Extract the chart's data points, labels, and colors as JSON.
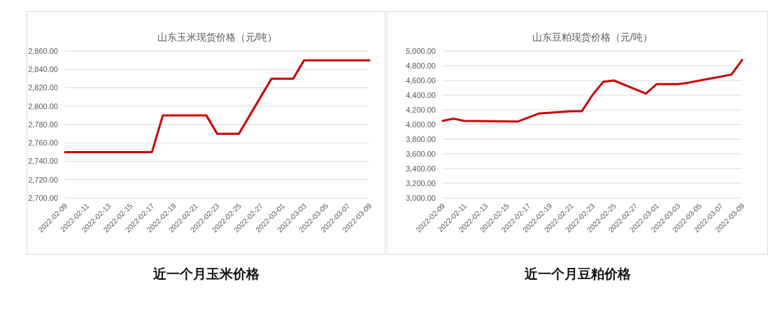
{
  "chart_data": [
    {
      "type": "line",
      "title": "山东玉米现货价格（元/吨）",
      "annotations": [
        "近一个月玉米价格"
      ],
      "x": [
        "2022-02-09",
        "2022-02-17",
        "2022-02-18",
        "2022-02-22",
        "2022-02-23",
        "2022-02-25",
        "2022-02-28",
        "2022-03-02",
        "2022-03-03",
        "2022-03-09"
      ],
      "series": [
        {
          "color": "#cc0000",
          "values": [
            2750,
            2750,
            2790,
            2790,
            2770,
            2770,
            2830,
            2830,
            2850,
            2850
          ]
        }
      ],
      "xlim": [
        "2022-02-09",
        "2022-03-09"
      ],
      "xticks": [
        "2022-02-09",
        "2022-02-11",
        "2022-02-13",
        "2022-02-15",
        "2022-02-17",
        "2022-02-19",
        "2022-02-21",
        "2022-02-23",
        "2022-02-25",
        "2022-02-27",
        "2022-03-01",
        "2022-03-03",
        "2022-03-05",
        "2022-03-07",
        "2022-03-09"
      ],
      "ylim": [
        2700,
        2860
      ],
      "yticks": [
        {
          "value": 2700,
          "label": "2,700.00"
        },
        {
          "value": 2720,
          "label": "2,720.00"
        },
        {
          "value": 2740,
          "label": "2,740.00"
        },
        {
          "value": 2760,
          "label": "2,760.00"
        },
        {
          "value": 2780,
          "label": "2,780.00"
        },
        {
          "value": 2800,
          "label": "2,800.00"
        },
        {
          "value": 2820,
          "label": "2,820.00"
        },
        {
          "value": 2840,
          "label": "2,840.00"
        },
        {
          "value": 2860,
          "label": "2,860.00"
        }
      ],
      "grid": "y",
      "marker": "none",
      "line_style": "solid"
    },
    {
      "type": "line",
      "title": "山东豆粕现货价格（元/吨）",
      "annotations": [
        "近一个月豆粕价格"
      ],
      "x": [
        "2022-02-09",
        "2022-02-10",
        "2022-02-11",
        "2022-02-16",
        "2022-02-18",
        "2022-02-21",
        "2022-02-22",
        "2022-02-23",
        "2022-02-24",
        "2022-02-25",
        "2022-02-28",
        "2022-03-01",
        "2022-03-03",
        "2022-03-04",
        "2022-03-08",
        "2022-03-09"
      ],
      "series": [
        {
          "color": "#cc0000",
          "values": [
            4050,
            4080,
            4050,
            4040,
            4150,
            4180,
            4180,
            4400,
            4580,
            4600,
            4420,
            4550,
            4550,
            4570,
            4680,
            4880
          ]
        }
      ],
      "xlim": [
        "2022-02-09",
        "2022-03-09"
      ],
      "xticks": [
        "2022-02-09",
        "2022-02-11",
        "2022-02-13",
        "2022-02-15",
        "2022-02-17",
        "2022-02-19",
        "2022-02-21",
        "2022-02-23",
        "2022-02-25",
        "2022-02-27",
        "2022-03-01",
        "2022-03-03",
        "2022-03-05",
        "2022-03-07",
        "2022-03-09"
      ],
      "ylim": [
        3000,
        5000
      ],
      "yticks": [
        {
          "value": 3000,
          "label": "3,000.00"
        },
        {
          "value": 3200,
          "label": "3,200.00"
        },
        {
          "value": 3400,
          "label": "3,400.00"
        },
        {
          "value": 3600,
          "label": "3,600.00"
        },
        {
          "value": 3800,
          "label": "3,800.00"
        },
        {
          "value": 4000,
          "label": "4,000.00"
        },
        {
          "value": 4200,
          "label": "4,200.00"
        },
        {
          "value": 4400,
          "label": "4,400.00"
        },
        {
          "value": 4600,
          "label": "4,600.00"
        },
        {
          "value": 4800,
          "label": "4,800.00"
        },
        {
          "value": 5000,
          "label": "5,000.00"
        }
      ],
      "grid": "y",
      "marker": "none",
      "line_style": "solid"
    }
  ]
}
